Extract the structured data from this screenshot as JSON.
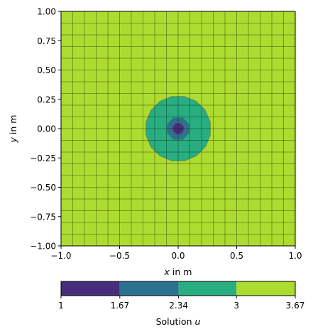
{
  "chart_data": {
    "type": "heatmap",
    "title": "",
    "xlabel": {
      "var": "x",
      "rest": " in m"
    },
    "ylabel": {
      "var": "y",
      "rest": " in m"
    },
    "xlim": [
      -1.0,
      1.0
    ],
    "ylim": [
      -1.0,
      1.0
    ],
    "x_ticks": [
      "-1.0",
      "-0.5",
      "0.0",
      "0.5",
      "1.0"
    ],
    "y_ticks": [
      "1.00",
      "0.75",
      "0.50",
      "0.25",
      "0.00",
      "-0.25",
      "-0.50",
      "-0.75",
      "-1.00"
    ],
    "mesh_divisions": 20,
    "colorbar": {
      "label": {
        "text": "Solution ",
        "var": "u"
      },
      "ticks": [
        "1",
        "1.67",
        "2.34",
        "3",
        "3.67"
      ],
      "levels": [
        1.0,
        1.67,
        2.34,
        3.0,
        3.67
      ],
      "colors": [
        "#472d7b",
        "#2c728e",
        "#28ae80",
        "#addc30"
      ]
    },
    "contour_regions": [
      {
        "level_band": "3 - 3.67",
        "color": "#addc30",
        "shape": "background"
      },
      {
        "level_band": "2.34 - 3",
        "color": "#28ae80",
        "center": [
          0.0,
          0.0
        ],
        "radius": 0.28
      },
      {
        "level_band": "1.67 - 2.34",
        "color": "#2c728e",
        "center": [
          0.0,
          0.0
        ],
        "radius": 0.1
      },
      {
        "level_band": "1 - 1.67",
        "color": "#472d7b",
        "center": [
          0.0,
          0.0
        ],
        "radius": 0.05
      }
    ]
  }
}
